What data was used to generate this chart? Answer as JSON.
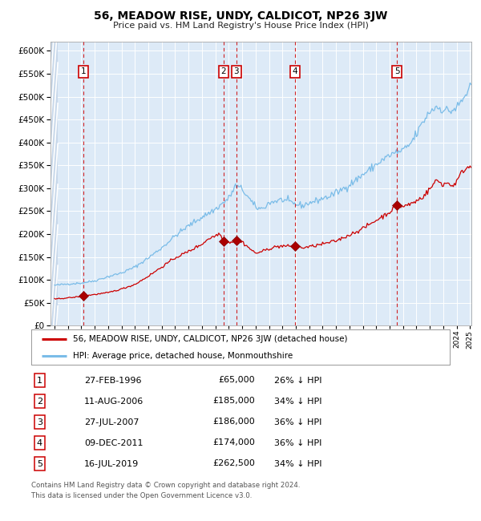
{
  "title": "56, MEADOW RISE, UNDY, CALDICOT, NP26 3JW",
  "subtitle": "Price paid vs. HM Land Registry's House Price Index (HPI)",
  "legend_line1": "56, MEADOW RISE, UNDY, CALDICOT, NP26 3JW (detached house)",
  "legend_line2": "HPI: Average price, detached house, Monmouthshire",
  "footer_line1": "Contains HM Land Registry data © Crown copyright and database right 2024.",
  "footer_line2": "This data is licensed under the Open Government Licence v3.0.",
  "sales": [
    {
      "num": 1,
      "date_label": "27-FEB-1996",
      "price": 65000,
      "hpi_pct": "26% ↓ HPI",
      "year": 1996.15
    },
    {
      "num": 2,
      "date_label": "11-AUG-2006",
      "price": 185000,
      "hpi_pct": "34% ↓ HPI",
      "year": 2006.61
    },
    {
      "num": 3,
      "date_label": "27-JUL-2007",
      "price": 186000,
      "hpi_pct": "36% ↓ HPI",
      "year": 2007.57
    },
    {
      "num": 4,
      "date_label": "09-DEC-2011",
      "price": 174000,
      "hpi_pct": "36% ↓ HPI",
      "year": 2011.94
    },
    {
      "num": 5,
      "date_label": "16-JUL-2019",
      "price": 262500,
      "hpi_pct": "34% ↓ HPI",
      "year": 2019.54
    }
  ],
  "hpi_color": "#7abce8",
  "sale_color": "#cc0000",
  "vline_color": "#cc0000",
  "plot_bg": "#ddeaf7",
  "ylim": [
    0,
    620000
  ],
  "yticks": [
    0,
    50000,
    100000,
    150000,
    200000,
    250000,
    300000,
    350000,
    400000,
    450000,
    500000,
    550000,
    600000
  ],
  "year_start": 1994,
  "year_end": 2025,
  "hpi_anchors": {
    "1994.0": 88000,
    "1995.0": 91000,
    "1996.0": 93000,
    "1997.0": 98000,
    "1998.0": 107000,
    "1999.0": 115000,
    "2000.0": 128000,
    "2001.0": 148000,
    "2002.0": 170000,
    "2003.0": 196000,
    "2004.0": 218000,
    "2005.0": 237000,
    "2006.0": 254000,
    "2006.5": 266000,
    "2007.0": 278000,
    "2007.5": 305000,
    "2008.0": 298000,
    "2008.5": 278000,
    "2009.0": 258000,
    "2009.5": 255000,
    "2010.0": 268000,
    "2010.5": 272000,
    "2011.0": 275000,
    "2011.5": 270000,
    "2012.0": 265000,
    "2012.5": 262000,
    "2013.0": 268000,
    "2013.5": 272000,
    "2014.0": 278000,
    "2014.5": 282000,
    "2015.0": 290000,
    "2015.5": 298000,
    "2016.0": 308000,
    "2016.5": 318000,
    "2017.0": 330000,
    "2017.5": 340000,
    "2018.0": 352000,
    "2018.5": 362000,
    "2019.0": 372000,
    "2019.5": 378000,
    "2020.0": 382000,
    "2020.5": 395000,
    "2021.0": 418000,
    "2021.5": 445000,
    "2022.0": 468000,
    "2022.5": 478000,
    "2023.0": 472000,
    "2023.5": 468000,
    "2024.0": 475000,
    "2024.5": 495000,
    "2025.0": 520000
  },
  "prop_anchors": {
    "1994.0": 58000,
    "1995.5": 62000,
    "1996.15": 65000,
    "1997.0": 68000,
    "1998.0": 72000,
    "1999.0": 80000,
    "2000.0": 90000,
    "2001.0": 108000,
    "2002.0": 128000,
    "2003.0": 148000,
    "2004.0": 162000,
    "2005.0": 178000,
    "2005.5": 190000,
    "2006.0": 196000,
    "2006.3": 202000,
    "2006.61": 185000,
    "2007.0": 182000,
    "2007.57": 186000,
    "2008.0": 183000,
    "2008.3": 175000,
    "2008.7": 165000,
    "2009.0": 158000,
    "2009.5": 162000,
    "2010.0": 168000,
    "2010.5": 172000,
    "2011.0": 174000,
    "2011.5": 173000,
    "2011.94": 174000,
    "2012.5": 170000,
    "2013.0": 172000,
    "2013.5": 175000,
    "2014.0": 178000,
    "2015.0": 185000,
    "2016.0": 198000,
    "2017.0": 212000,
    "2018.0": 230000,
    "2019.0": 248000,
    "2019.54": 262500,
    "2020.0": 260000,
    "2020.5": 265000,
    "2021.0": 272000,
    "2021.5": 282000,
    "2022.0": 298000,
    "2022.5": 318000,
    "2023.0": 308000,
    "2023.3": 312000,
    "2023.7": 305000,
    "2024.0": 315000,
    "2024.5": 340000,
    "2025.0": 348000
  }
}
